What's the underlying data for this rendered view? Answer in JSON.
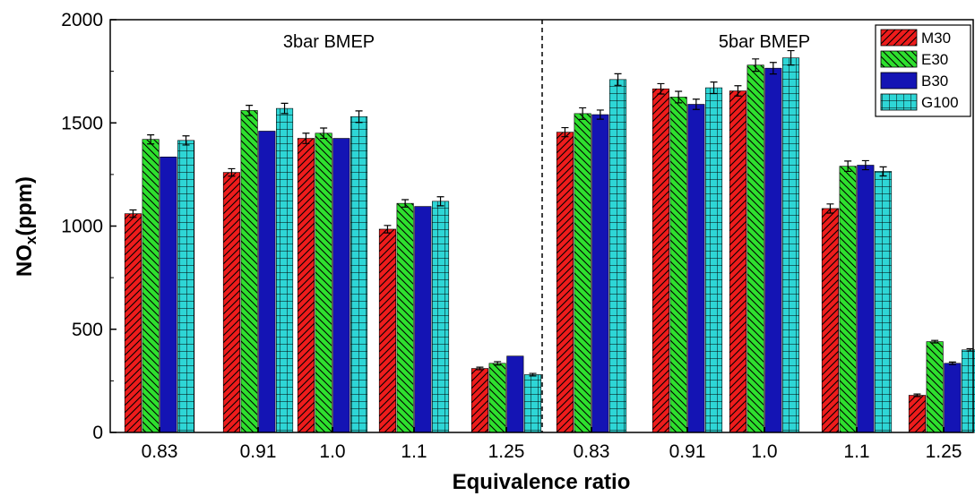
{
  "chart_data": {
    "type": "bar",
    "xlabel": "Equivalence ratio",
    "ylabel_main": "NO",
    "ylabel_sub": "x",
    "ylabel_unit": "(ppm)",
    "ylim": [
      0,
      2000
    ],
    "yticks": [
      0,
      500,
      1000,
      1500,
      2000
    ],
    "grid": false,
    "legend_position": "top-right",
    "panels": [
      {
        "label": "3bar BMEP",
        "categories": [
          "0.83",
          "0.91",
          "1.0",
          "1.1",
          "1.25"
        ],
        "series": [
          {
            "name": "M30",
            "values": [
              1060,
              1260,
              1425,
              985,
              310
            ],
            "errors": [
              18,
              18,
              25,
              18,
              6
            ]
          },
          {
            "name": "E30",
            "values": [
              1420,
              1560,
              1450,
              1110,
              335
            ],
            "errors": [
              22,
              25,
              25,
              18,
              8
            ]
          },
          {
            "name": "B30",
            "values": [
              1335,
              1460,
              1425,
              1095,
              370
            ],
            "errors": [
              0,
              0,
              0,
              0,
              0
            ]
          },
          {
            "name": "G100",
            "values": [
              1415,
              1570,
              1530,
              1120,
              280
            ],
            "errors": [
              22,
              25,
              28,
              22,
              6
            ]
          }
        ]
      },
      {
        "label": "5bar BMEP",
        "categories": [
          "0.83",
          "0.91",
          "1.0",
          "1.1",
          "1.25"
        ],
        "series": [
          {
            "name": "M30",
            "values": [
              1455,
              1665,
              1655,
              1085,
              180
            ],
            "errors": [
              22,
              25,
              25,
              22,
              6
            ]
          },
          {
            "name": "E30",
            "values": [
              1545,
              1625,
              1780,
              1290,
              440
            ],
            "errors": [
              28,
              28,
              30,
              25,
              6
            ]
          },
          {
            "name": "B30",
            "values": [
              1540,
              1590,
              1765,
              1295,
              335
            ],
            "errors": [
              22,
              25,
              28,
              22,
              6
            ]
          },
          {
            "name": "G100",
            "values": [
              1710,
              1670,
              1815,
              1265,
              400
            ],
            "errors": [
              28,
              28,
              35,
              22,
              6
            ]
          }
        ]
      }
    ],
    "colors": {
      "M30": "#ee1c1c",
      "E30": "#2ee02e",
      "B30": "#1414b4",
      "G100": "#2ed6d6"
    },
    "patterns": {
      "M30": "diag-right",
      "E30": "diag-left",
      "B30": "solid",
      "G100": "grid"
    }
  }
}
